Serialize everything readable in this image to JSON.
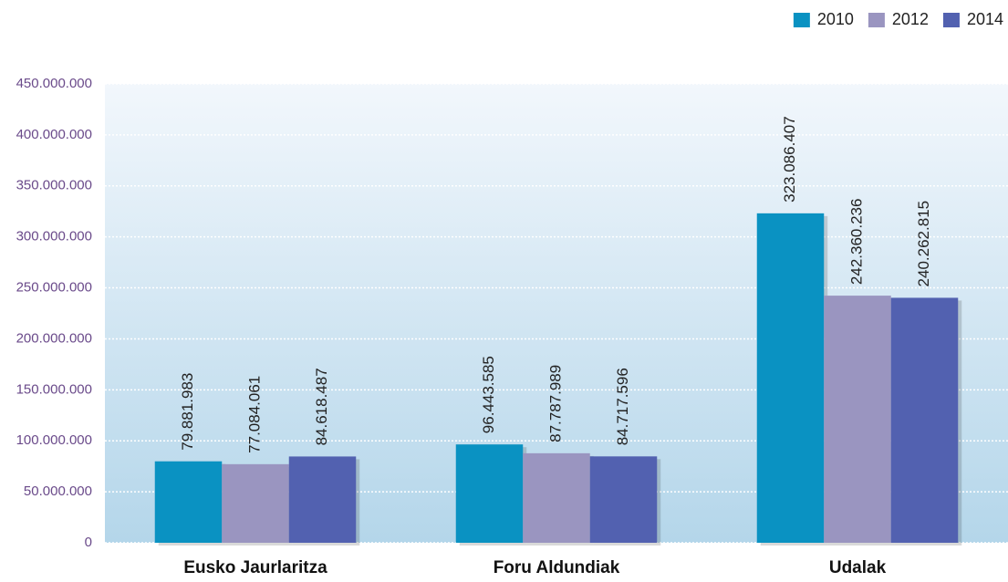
{
  "chart_data": {
    "type": "bar",
    "categories": [
      "Eusko Jaurlaritza",
      "Foru Aldundiak",
      "Udalak"
    ],
    "series": [
      {
        "name": "2010",
        "color": "#0a92c2",
        "values": [
          79881983,
          96443585,
          323086407
        ],
        "value_labels": [
          "79.881.983",
          "96.443.585",
          "323.086.407"
        ]
      },
      {
        "name": "2012",
        "color": "#9a95c0",
        "values": [
          77084061,
          87787989,
          242360236
        ],
        "value_labels": [
          "77.084.061",
          "87.787.989",
          "242.360.236"
        ]
      },
      {
        "name": "2014",
        "color": "#5261b0",
        "values": [
          84618487,
          84717596,
          240262815
        ],
        "value_labels": [
          "84.618.487",
          "84.717.596",
          "240.262.815"
        ]
      }
    ],
    "ylim": [
      0,
      450000000
    ],
    "yticks": [
      {
        "value": 0,
        "label": "0"
      },
      {
        "value": 50000000,
        "label": "50.000.000"
      },
      {
        "value": 100000000,
        "label": "100.000.000"
      },
      {
        "value": 150000000,
        "label": "150.000.000"
      },
      {
        "value": 200000000,
        "label": "200.000.000"
      },
      {
        "value": 250000000,
        "label": "250.000.000"
      },
      {
        "value": 300000000,
        "label": "300.000.000"
      },
      {
        "value": 350000000,
        "label": "350.000.000"
      },
      {
        "value": 400000000,
        "label": "400.000.000"
      },
      {
        "value": 450000000,
        "label": "450.000.000"
      }
    ],
    "grid": true,
    "legend": "top-right"
  }
}
